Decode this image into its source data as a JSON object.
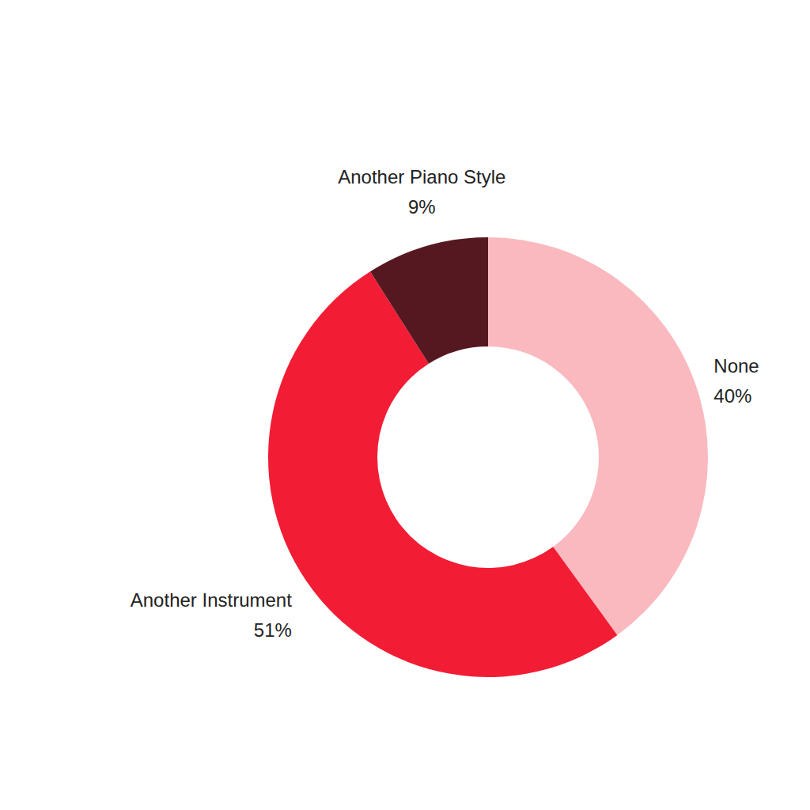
{
  "chart_data": {
    "type": "pie",
    "categories": [
      "None",
      "Another Instrument",
      "Another Piano Style"
    ],
    "values": [
      40,
      51,
      9
    ],
    "value_labels": [
      "40%",
      "51%",
      "9%"
    ],
    "colors": [
      "#f9b9bf",
      "#f21c34",
      "#561820"
    ],
    "data_labels": true
  }
}
